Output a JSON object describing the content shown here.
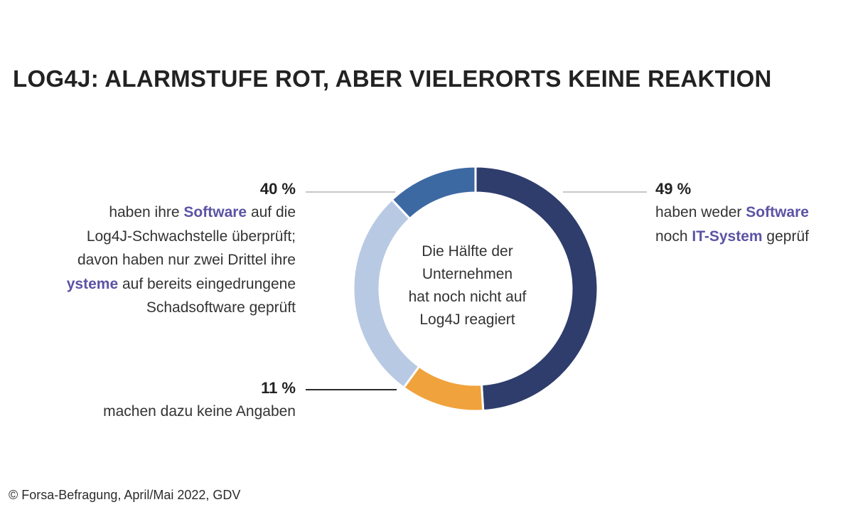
{
  "title": "LOG4J: ALARMSTUFE ROT, ABER VIELERORTS KEINE REAKTION",
  "center_text": [
    "Die Hälfte der",
    "Unternehmen",
    "hat noch nicht auf",
    "Log4J reagiert"
  ],
  "source": "© Forsa-Befragung, April/Mai 2022, GDV",
  "colors": {
    "navy": "#2f3d6c",
    "light_blue": "#b8c9e3",
    "medium_blue": "#3d69a3",
    "orange": "#f0a23c",
    "highlight": "#5a54a4",
    "leader_line": "#c8c8c8"
  },
  "labels": {
    "left_top": {
      "pct": "40 %",
      "lines": [
        {
          "a": "haben ihre ",
          "h": "Software",
          "b": " auf die"
        },
        {
          "a": "Log4J-Schwachstelle überprüft;",
          "h": "",
          "b": ""
        },
        {
          "a": "davon haben nur zwei Drittel ihre",
          "h": "",
          "b": ""
        },
        {
          "a": "",
          "h": "ysteme",
          "b": " auf bereits eingedrungene"
        },
        {
          "a": "Schadsoftware geprüft",
          "h": "",
          "b": ""
        }
      ]
    },
    "left_bottom": {
      "pct": "11 %",
      "lines": [
        {
          "a": "machen dazu keine Angaben",
          "h": "",
          "b": ""
        }
      ]
    },
    "right": {
      "pct": "49 %",
      "lines": [
        {
          "a": "haben weder ",
          "h": "Software",
          "b": ""
        },
        {
          "a": "noch ",
          "h": "IT-System",
          "b": " geprüf"
        }
      ]
    }
  },
  "chart_data": {
    "type": "pie",
    "donut": true,
    "slices": [
      {
        "value": 49,
        "color": "#2f3d6c"
      },
      {
        "value": 11,
        "color": "#f0a23c"
      },
      {
        "value": 28,
        "color": "#b8c9e3"
      },
      {
        "value": 12,
        "color": "#3d69a3"
      }
    ],
    "grouped_labels": [
      {
        "label": "40 %",
        "slices": [
          2,
          3
        ]
      },
      {
        "label": "11 %",
        "slices": [
          1
        ]
      },
      {
        "label": "49 %",
        "slices": [
          0
        ]
      }
    ]
  }
}
